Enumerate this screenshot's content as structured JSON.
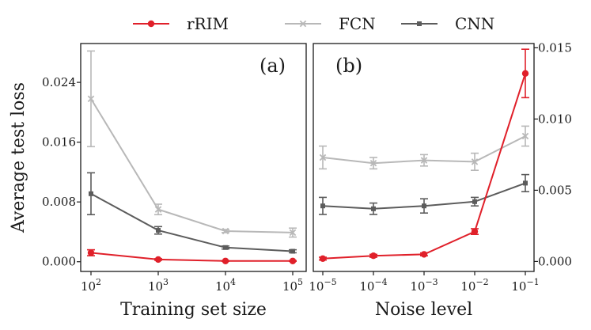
{
  "legend": [
    {
      "name": "rRIM",
      "color": "#e0202a",
      "marker": "circle"
    },
    {
      "name": "FCN",
      "color": "#b8b8b8",
      "marker": "x"
    },
    {
      "name": "CNN",
      "color": "#5c5c5c",
      "marker": "square"
    }
  ],
  "chart_data": [
    {
      "type": "line",
      "panel_label": "(a)",
      "xlabel": "Training set size",
      "ylabel": "Average test loss",
      "x_scale": "log",
      "x": [
        100,
        1000,
        10000,
        100000
      ],
      "x_tick_labels": [
        {
          "base": "10",
          "exp": "2"
        },
        {
          "base": "10",
          "exp": "3"
        },
        {
          "base": "10",
          "exp": "4"
        },
        {
          "base": "10",
          "exp": "5"
        }
      ],
      "y_axis_side": "left",
      "ylim": [
        -0.0013,
        0.0292
      ],
      "yticks": [
        0.0,
        0.008,
        0.016,
        0.024
      ],
      "y_tick_labels": [
        "0.000",
        "0.008",
        "0.016",
        "0.024"
      ],
      "series": [
        {
          "name": "FCN",
          "values": [
            0.0218,
            0.007,
            0.0041,
            0.0039
          ],
          "errors": [
            0.0064,
            0.0007,
            0.0002,
            0.0006
          ]
        },
        {
          "name": "CNN",
          "values": [
            0.0091,
            0.0042,
            0.0019,
            0.0014
          ],
          "errors": [
            0.0028,
            0.0005,
            0.0002,
            0.0002
          ]
        },
        {
          "name": "rRIM",
          "values": [
            0.0012,
            0.0003,
            0.0001,
            0.0001
          ],
          "errors": [
            0.0004,
            0.0001,
            5e-05,
            5e-05
          ]
        }
      ]
    },
    {
      "type": "line",
      "panel_label": "(b)",
      "xlabel": "Noise level",
      "ylabel": "",
      "x_scale": "log",
      "x": [
        1e-05,
        0.0001,
        0.001,
        0.01,
        0.1
      ],
      "x_tick_labels": [
        {
          "base": "10",
          "exp": "−5"
        },
        {
          "base": "10",
          "exp": "−4"
        },
        {
          "base": "10",
          "exp": "−3"
        },
        {
          "base": "10",
          "exp": "−2"
        },
        {
          "base": "10",
          "exp": "−1"
        }
      ],
      "y_axis_side": "right",
      "ylim": [
        -0.0007,
        0.0153
      ],
      "yticks": [
        0.0,
        0.005,
        0.01,
        0.015
      ],
      "y_tick_labels": [
        "0.000",
        "0.005",
        "0.010",
        "0.015"
      ],
      "series": [
        {
          "name": "FCN",
          "values": [
            0.0073,
            0.0069,
            0.0071,
            0.007,
            0.0088
          ],
          "errors": [
            0.0008,
            0.0004,
            0.0004,
            0.0006,
            0.0007
          ]
        },
        {
          "name": "CNN",
          "values": [
            0.0039,
            0.0037,
            0.0039,
            0.0042,
            0.0055
          ],
          "errors": [
            0.0006,
            0.0004,
            0.0005,
            0.0003,
            0.0006
          ]
        },
        {
          "name": "rRIM",
          "values": [
            0.0002,
            0.0004,
            0.0005,
            0.0021,
            0.0132
          ],
          "errors": [
            0.0001,
            0.0001,
            0.0001,
            0.0002,
            0.0017
          ]
        }
      ]
    }
  ]
}
